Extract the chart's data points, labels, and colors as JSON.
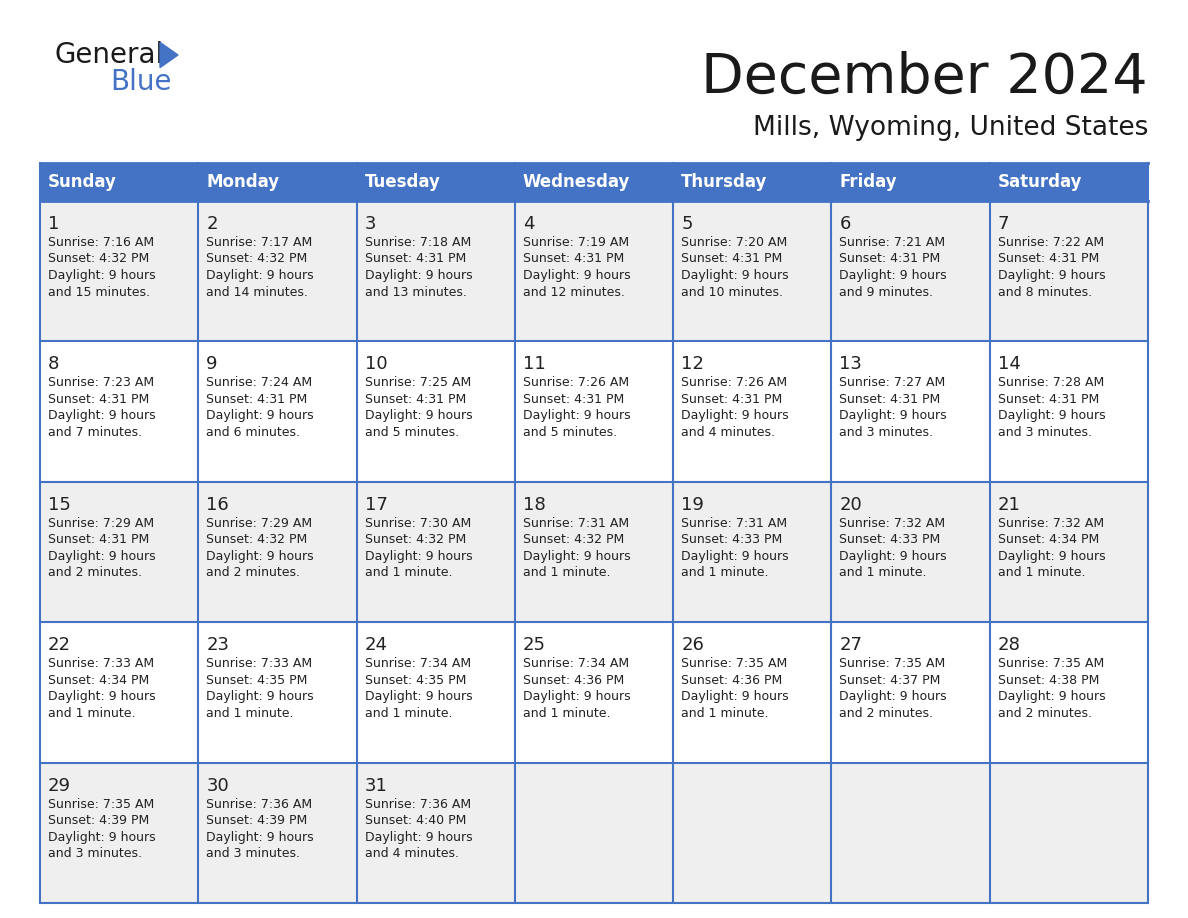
{
  "title": "December 2024",
  "subtitle": "Mills, Wyoming, United States",
  "header_color": "#4472C4",
  "header_text_color": "#FFFFFF",
  "day_names": [
    "Sunday",
    "Monday",
    "Tuesday",
    "Wednesday",
    "Thursday",
    "Friday",
    "Saturday"
  ],
  "background_color": "#FFFFFF",
  "cell_bg_even": "#EFEFEF",
  "cell_bg_odd": "#FFFFFF",
  "grid_line_color": "#4472C4",
  "text_color": "#222222",
  "days": [
    {
      "day": 1,
      "col": 0,
      "row": 0,
      "sunrise": "7:16 AM",
      "sunset": "4:32 PM",
      "daylight": "9 hours and 15 minutes."
    },
    {
      "day": 2,
      "col": 1,
      "row": 0,
      "sunrise": "7:17 AM",
      "sunset": "4:32 PM",
      "daylight": "9 hours and 14 minutes."
    },
    {
      "day": 3,
      "col": 2,
      "row": 0,
      "sunrise": "7:18 AM",
      "sunset": "4:31 PM",
      "daylight": "9 hours and 13 minutes."
    },
    {
      "day": 4,
      "col": 3,
      "row": 0,
      "sunrise": "7:19 AM",
      "sunset": "4:31 PM",
      "daylight": "9 hours and 12 minutes."
    },
    {
      "day": 5,
      "col": 4,
      "row": 0,
      "sunrise": "7:20 AM",
      "sunset": "4:31 PM",
      "daylight": "9 hours and 10 minutes."
    },
    {
      "day": 6,
      "col": 5,
      "row": 0,
      "sunrise": "7:21 AM",
      "sunset": "4:31 PM",
      "daylight": "9 hours and 9 minutes."
    },
    {
      "day": 7,
      "col": 6,
      "row": 0,
      "sunrise": "7:22 AM",
      "sunset": "4:31 PM",
      "daylight": "9 hours and 8 minutes."
    },
    {
      "day": 8,
      "col": 0,
      "row": 1,
      "sunrise": "7:23 AM",
      "sunset": "4:31 PM",
      "daylight": "9 hours and 7 minutes."
    },
    {
      "day": 9,
      "col": 1,
      "row": 1,
      "sunrise": "7:24 AM",
      "sunset": "4:31 PM",
      "daylight": "9 hours and 6 minutes."
    },
    {
      "day": 10,
      "col": 2,
      "row": 1,
      "sunrise": "7:25 AM",
      "sunset": "4:31 PM",
      "daylight": "9 hours and 5 minutes."
    },
    {
      "day": 11,
      "col": 3,
      "row": 1,
      "sunrise": "7:26 AM",
      "sunset": "4:31 PM",
      "daylight": "9 hours and 5 minutes."
    },
    {
      "day": 12,
      "col": 4,
      "row": 1,
      "sunrise": "7:26 AM",
      "sunset": "4:31 PM",
      "daylight": "9 hours and 4 minutes."
    },
    {
      "day": 13,
      "col": 5,
      "row": 1,
      "sunrise": "7:27 AM",
      "sunset": "4:31 PM",
      "daylight": "9 hours and 3 minutes."
    },
    {
      "day": 14,
      "col": 6,
      "row": 1,
      "sunrise": "7:28 AM",
      "sunset": "4:31 PM",
      "daylight": "9 hours and 3 minutes."
    },
    {
      "day": 15,
      "col": 0,
      "row": 2,
      "sunrise": "7:29 AM",
      "sunset": "4:31 PM",
      "daylight": "9 hours and 2 minutes."
    },
    {
      "day": 16,
      "col": 1,
      "row": 2,
      "sunrise": "7:29 AM",
      "sunset": "4:32 PM",
      "daylight": "9 hours and 2 minutes."
    },
    {
      "day": 17,
      "col": 2,
      "row": 2,
      "sunrise": "7:30 AM",
      "sunset": "4:32 PM",
      "daylight": "9 hours and 1 minute."
    },
    {
      "day": 18,
      "col": 3,
      "row": 2,
      "sunrise": "7:31 AM",
      "sunset": "4:32 PM",
      "daylight": "9 hours and 1 minute."
    },
    {
      "day": 19,
      "col": 4,
      "row": 2,
      "sunrise": "7:31 AM",
      "sunset": "4:33 PM",
      "daylight": "9 hours and 1 minute."
    },
    {
      "day": 20,
      "col": 5,
      "row": 2,
      "sunrise": "7:32 AM",
      "sunset": "4:33 PM",
      "daylight": "9 hours and 1 minute."
    },
    {
      "day": 21,
      "col": 6,
      "row": 2,
      "sunrise": "7:32 AM",
      "sunset": "4:34 PM",
      "daylight": "9 hours and 1 minute."
    },
    {
      "day": 22,
      "col": 0,
      "row": 3,
      "sunrise": "7:33 AM",
      "sunset": "4:34 PM",
      "daylight": "9 hours and 1 minute."
    },
    {
      "day": 23,
      "col": 1,
      "row": 3,
      "sunrise": "7:33 AM",
      "sunset": "4:35 PM",
      "daylight": "9 hours and 1 minute."
    },
    {
      "day": 24,
      "col": 2,
      "row": 3,
      "sunrise": "7:34 AM",
      "sunset": "4:35 PM",
      "daylight": "9 hours and 1 minute."
    },
    {
      "day": 25,
      "col": 3,
      "row": 3,
      "sunrise": "7:34 AM",
      "sunset": "4:36 PM",
      "daylight": "9 hours and 1 minute."
    },
    {
      "day": 26,
      "col": 4,
      "row": 3,
      "sunrise": "7:35 AM",
      "sunset": "4:36 PM",
      "daylight": "9 hours and 1 minute."
    },
    {
      "day": 27,
      "col": 5,
      "row": 3,
      "sunrise": "7:35 AM",
      "sunset": "4:37 PM",
      "daylight": "9 hours and 2 minutes."
    },
    {
      "day": 28,
      "col": 6,
      "row": 3,
      "sunrise": "7:35 AM",
      "sunset": "4:38 PM",
      "daylight": "9 hours and 2 minutes."
    },
    {
      "day": 29,
      "col": 0,
      "row": 4,
      "sunrise": "7:35 AM",
      "sunset": "4:39 PM",
      "daylight": "9 hours and 3 minutes."
    },
    {
      "day": 30,
      "col": 1,
      "row": 4,
      "sunrise": "7:36 AM",
      "sunset": "4:39 PM",
      "daylight": "9 hours and 3 minutes."
    },
    {
      "day": 31,
      "col": 2,
      "row": 4,
      "sunrise": "7:36 AM",
      "sunset": "4:40 PM",
      "daylight": "9 hours and 4 minutes."
    }
  ]
}
